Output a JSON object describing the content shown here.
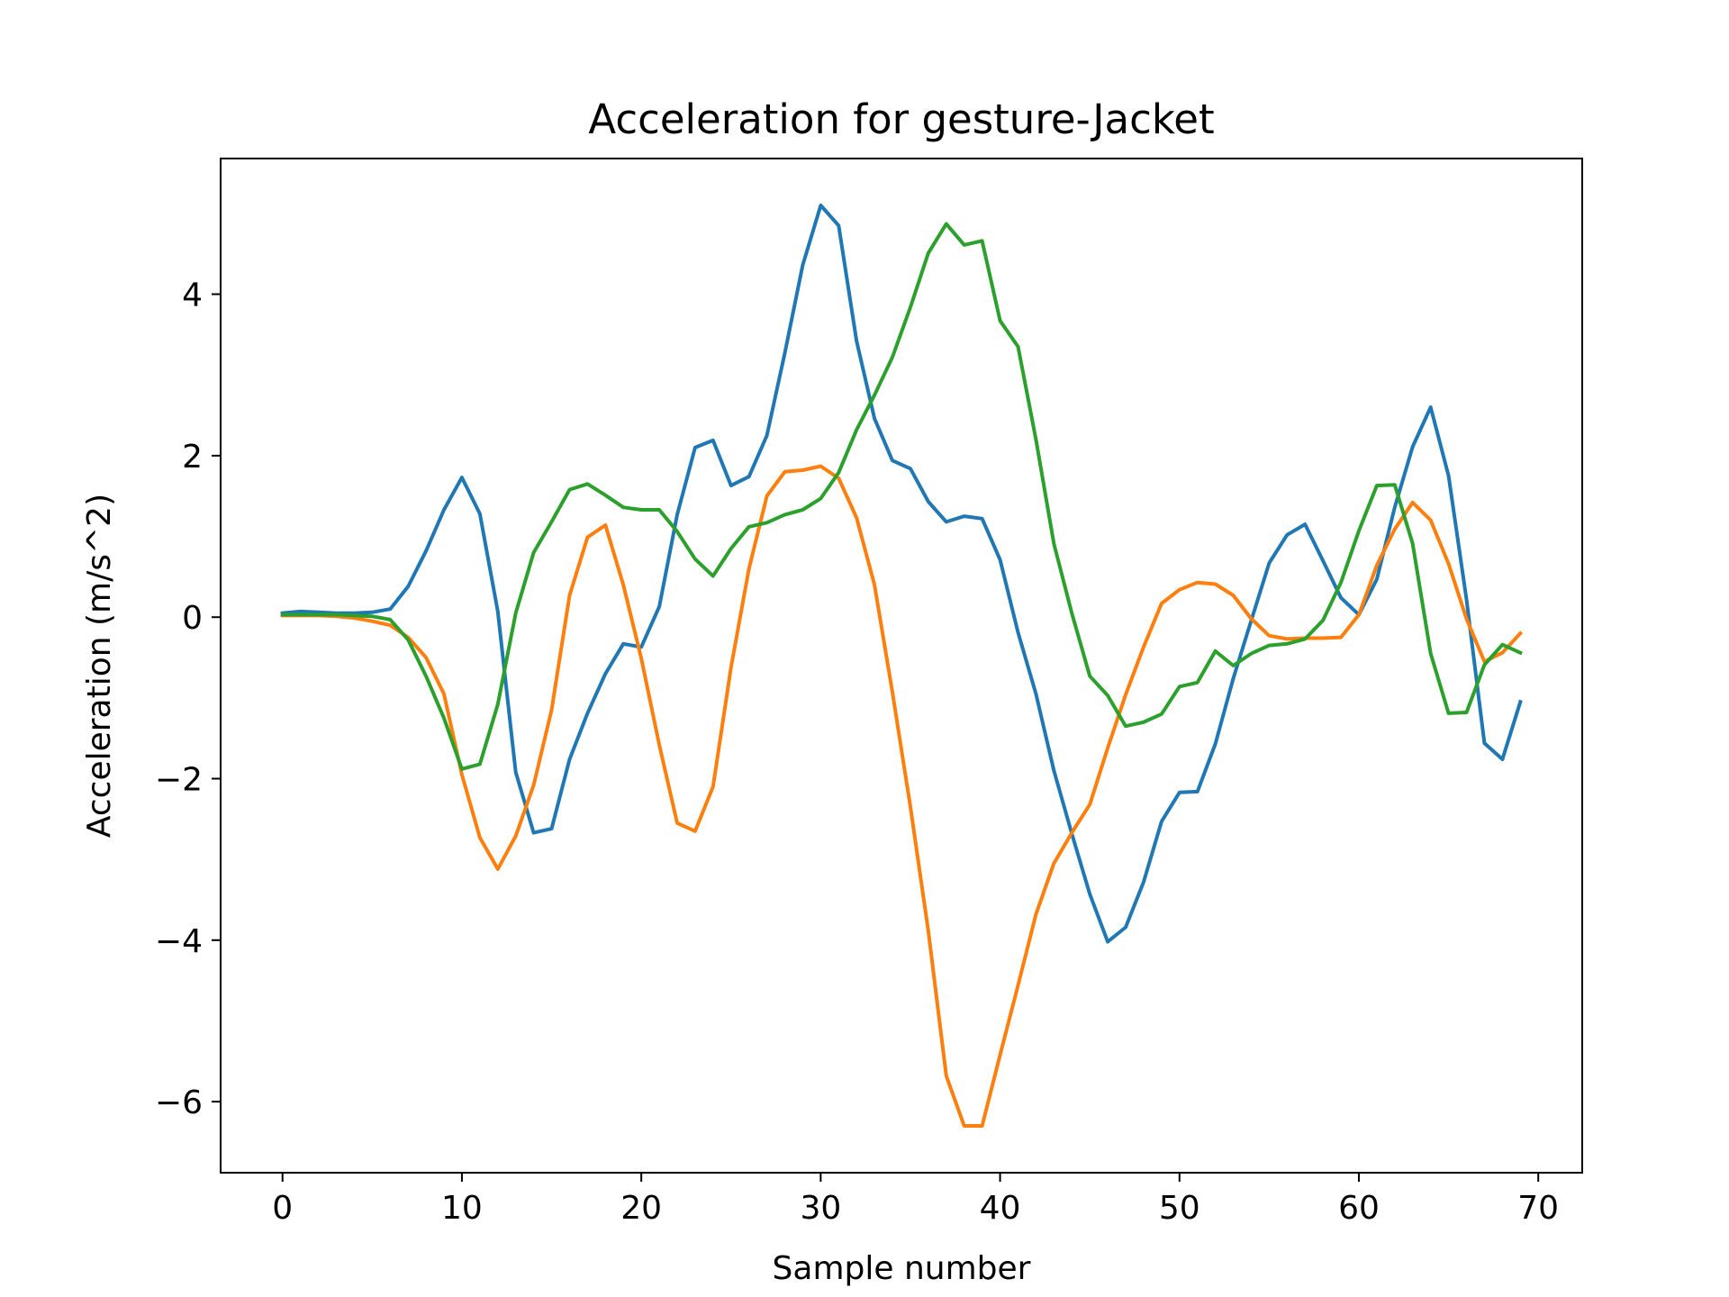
{
  "chart_data": {
    "type": "line",
    "title": "Acceleration for gesture-Jacket",
    "xlabel": "Sample number",
    "ylabel": "Acceleration (m/s^2)",
    "xlim": [
      -3.45,
      72.45
    ],
    "ylim": [
      -6.88,
      5.68
    ],
    "xticks": [
      0,
      10,
      20,
      30,
      40,
      50,
      60,
      70
    ],
    "xtick_labels": [
      "0",
      "10",
      "20",
      "30",
      "40",
      "50",
      "60",
      "70"
    ],
    "yticks": [
      4,
      2,
      0,
      -2,
      -4,
      -6
    ],
    "ytick_labels": [
      "4",
      "2",
      "0",
      "−2",
      "−4",
      "−6"
    ],
    "grid": false,
    "legend": "none",
    "series": [
      {
        "color": "#1f77b4",
        "values": [
          0.05,
          0.07,
          0.06,
          0.05,
          0.05,
          0.06,
          0.1,
          0.38,
          0.82,
          1.33,
          1.73,
          1.28,
          0.07,
          -1.92,
          -2.67,
          -2.62,
          -1.76,
          -1.19,
          -0.7,
          -0.33,
          -0.37,
          0.13,
          1.27,
          2.1,
          2.19,
          1.63,
          1.74,
          2.25,
          3.27,
          4.36,
          5.1,
          4.85,
          3.42,
          2.46,
          1.94,
          1.84,
          1.43,
          1.18,
          1.25,
          1.22,
          0.71,
          -0.19,
          -0.95,
          -1.9,
          -2.68,
          -3.43,
          -4.02,
          -3.84,
          -3.28,
          -2.53,
          -2.17,
          -2.16,
          -1.57,
          -0.76,
          -0.04,
          0.67,
          1.02,
          1.15,
          0.7,
          0.24,
          0.03,
          0.47,
          1.36,
          2.11,
          2.6,
          1.75,
          0.22,
          -1.56,
          -1.76,
          -1.05
        ]
      },
      {
        "color": "#ff7f0e",
        "values": [
          0.02,
          0.02,
          0.02,
          0.01,
          -0.01,
          -0.05,
          -0.1,
          -0.25,
          -0.5,
          -0.95,
          -1.95,
          -2.73,
          -3.12,
          -2.71,
          -2.08,
          -1.15,
          0.27,
          0.99,
          1.14,
          0.4,
          -0.51,
          -1.58,
          -2.55,
          -2.65,
          -2.1,
          -0.62,
          0.6,
          1.5,
          1.8,
          1.82,
          1.87,
          1.72,
          1.23,
          0.4,
          -0.93,
          -2.35,
          -3.89,
          -5.68,
          -6.3,
          -6.3,
          -5.42,
          -4.56,
          -3.68,
          -3.05,
          -2.67,
          -2.32,
          -1.62,
          -0.96,
          -0.37,
          0.17,
          0.34,
          0.43,
          0.41,
          0.27,
          -0.02,
          -0.23,
          -0.27,
          -0.26,
          -0.26,
          -0.25,
          0.03,
          0.64,
          1.09,
          1.42,
          1.2,
          0.66,
          -0.02,
          -0.55,
          -0.44,
          -0.2
        ]
      },
      {
        "color": "#2ca02c",
        "values": [
          0.03,
          0.03,
          0.03,
          0.03,
          0.02,
          0.01,
          -0.03,
          -0.28,
          -0.73,
          -1.25,
          -1.88,
          -1.82,
          -1.08,
          0.05,
          0.8,
          1.18,
          1.58,
          1.65,
          1.51,
          1.36,
          1.33,
          1.33,
          1.06,
          0.72,
          0.51,
          0.85,
          1.12,
          1.17,
          1.27,
          1.33,
          1.47,
          1.79,
          2.32,
          2.75,
          3.22,
          3.84,
          4.51,
          4.87,
          4.61,
          4.66,
          3.67,
          3.35,
          2.2,
          0.91,
          0.05,
          -0.73,
          -0.97,
          -1.35,
          -1.3,
          -1.2,
          -0.86,
          -0.81,
          -0.42,
          -0.6,
          -0.45,
          -0.35,
          -0.33,
          -0.27,
          -0.04,
          0.43,
          1.07,
          1.63,
          1.64,
          0.91,
          -0.45,
          -1.19,
          -1.18,
          -0.59,
          -0.34,
          -0.44
        ]
      }
    ]
  }
}
